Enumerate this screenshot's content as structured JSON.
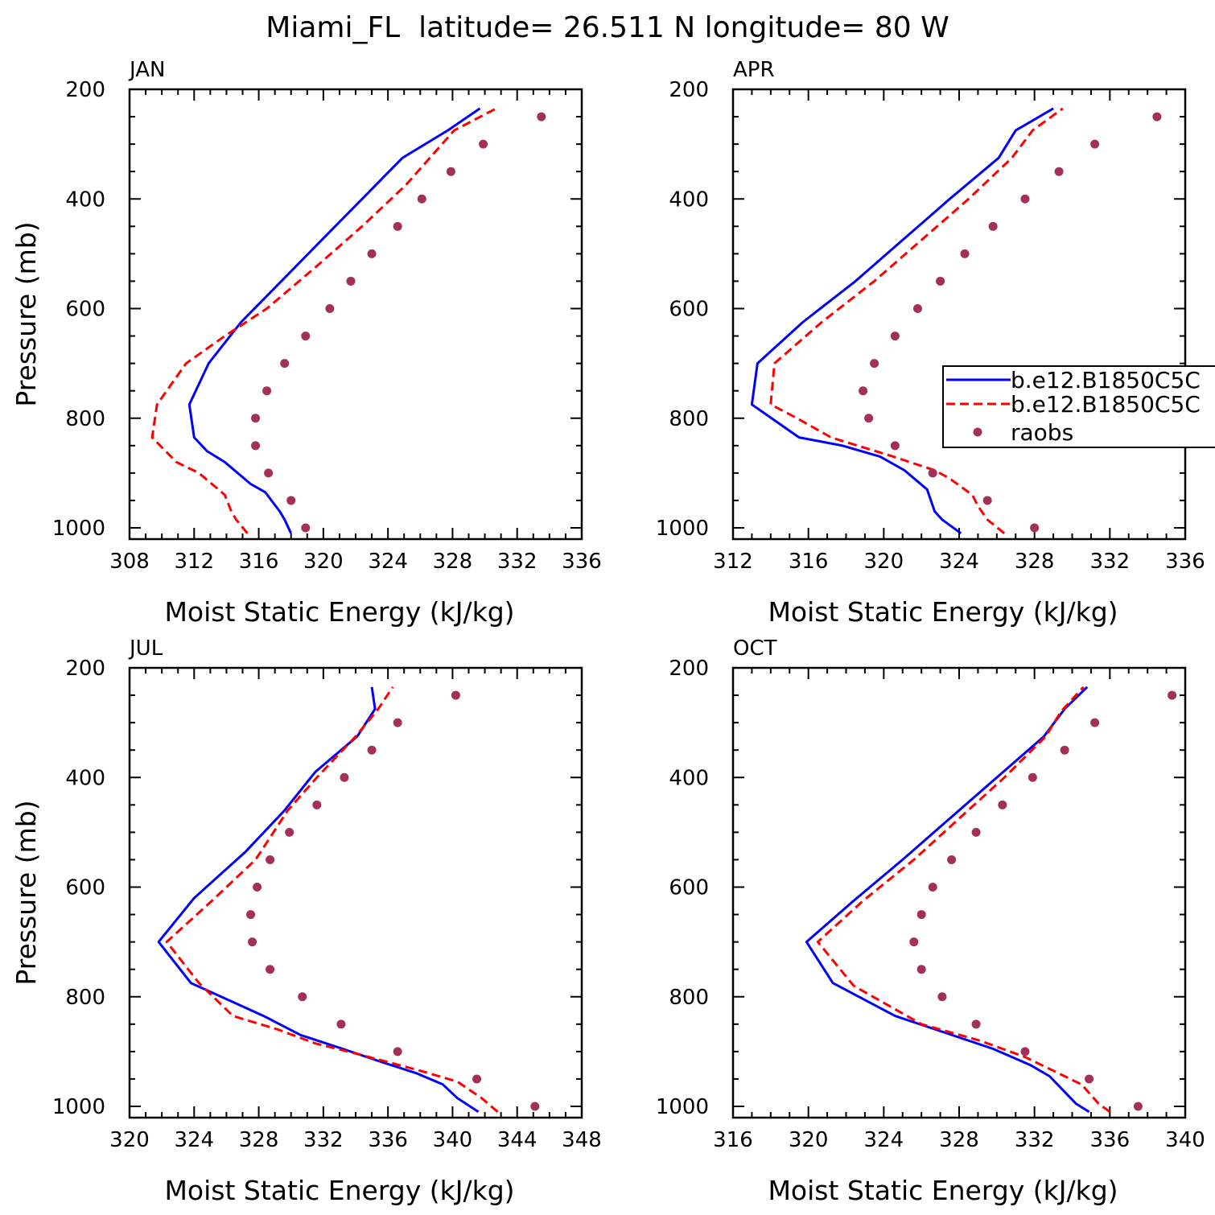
{
  "title": "Miami_FL  latitude= 26.511 N longitude= 80 W",
  "legend": {
    "entries": [
      {
        "label": "b.e12.B1850C5C",
        "style": "solid",
        "color": "#0000ff"
      },
      {
        "label": "b.e12.B1850C5C",
        "style": "dashed",
        "color": "#ff0000"
      },
      {
        "label": "raobs",
        "style": "dot",
        "color": "#a3305a"
      }
    ]
  },
  "chart_data": [
    {
      "type": "line",
      "title": "JAN",
      "xlabel": "Moist Static Energy (kJ/kg)",
      "ylabel": "Pressure (mb)",
      "xlim": [
        308,
        336
      ],
      "ylim": [
        1000,
        200
      ],
      "xticks": [
        "308",
        "312",
        "316",
        "320",
        "324",
        "328",
        "332",
        "336"
      ],
      "yticks": [
        "200",
        "400",
        "600",
        "800",
        "1000"
      ],
      "series": [
        {
          "color": "#0000ff",
          "style": "solid",
          "points": [
            [
              318.0,
              1010
            ],
            [
              317.6,
              985
            ],
            [
              317.3,
              970
            ],
            [
              316.4,
              935
            ],
            [
              315.5,
              920
            ],
            [
              313.9,
              880
            ],
            [
              312.8,
              860
            ],
            [
              312.0,
              835
            ],
            [
              311.7,
              775
            ],
            [
              312.9,
              700
            ],
            [
              314.9,
              625
            ],
            [
              317.4,
              550
            ],
            [
              319.9,
              475
            ],
            [
              322.4,
              400
            ],
            [
              324.9,
              325
            ],
            [
              327.7,
              275
            ],
            [
              329.7,
              235
            ]
          ]
        },
        {
          "color": "#ff0000",
          "style": "dashed",
          "points": [
            [
              315.3,
              1010
            ],
            [
              314.6,
              985
            ],
            [
              314.3,
              970
            ],
            [
              313.9,
              940
            ],
            [
              313.3,
              925
            ],
            [
              312.3,
              900
            ],
            [
              310.9,
              880
            ],
            [
              309.4,
              835
            ],
            [
              309.7,
              775
            ],
            [
              311.5,
              700
            ],
            [
              313.9,
              650
            ],
            [
              316.5,
              600
            ],
            [
              319.5,
              525
            ],
            [
              322.4,
              450
            ],
            [
              325.1,
              375
            ],
            [
              328.1,
              275
            ],
            [
              330.7,
              235
            ]
          ]
        },
        {
          "color": "#a3305a",
          "style": "dot",
          "points": [
            [
              318.9,
              1000
            ],
            [
              318.0,
              950
            ],
            [
              316.6,
              900
            ],
            [
              315.8,
              850
            ],
            [
              315.8,
              800
            ],
            [
              316.5,
              750
            ],
            [
              317.6,
              700
            ],
            [
              318.9,
              650
            ],
            [
              320.4,
              600
            ],
            [
              321.7,
              550
            ],
            [
              323.0,
              500
            ],
            [
              324.6,
              450
            ],
            [
              326.1,
              400
            ],
            [
              327.9,
              350
            ],
            [
              329.9,
              300
            ],
            [
              333.5,
              250
            ]
          ]
        }
      ]
    },
    {
      "type": "line",
      "title": "APR",
      "xlabel": "Moist Static Energy (kJ/kg)",
      "ylabel": "",
      "xlim": [
        312,
        336
      ],
      "ylim": [
        1000,
        200
      ],
      "xticks": [
        "312",
        "316",
        "320",
        "324",
        "328",
        "332",
        "336"
      ],
      "yticks": [
        "200",
        "400",
        "600",
        "800",
        "1000"
      ],
      "series": [
        {
          "color": "#0000ff",
          "style": "solid",
          "points": [
            [
              324.1,
              1010
            ],
            [
              323.1,
              985
            ],
            [
              322.7,
              970
            ],
            [
              322.3,
              930
            ],
            [
              321.1,
              895
            ],
            [
              319.8,
              870
            ],
            [
              317.8,
              850
            ],
            [
              315.5,
              835
            ],
            [
              313.0,
              775
            ],
            [
              313.3,
              700
            ],
            [
              315.7,
              625
            ],
            [
              318.5,
              550
            ],
            [
              321.0,
              475
            ],
            [
              323.5,
              400
            ],
            [
              326.1,
              325
            ],
            [
              327.0,
              275
            ],
            [
              329.0,
              235
            ]
          ]
        },
        {
          "color": "#ff0000",
          "style": "dashed",
          "points": [
            [
              326.4,
              1010
            ],
            [
              325.5,
              985
            ],
            [
              325.0,
              960
            ],
            [
              324.7,
              940
            ],
            [
              323.5,
              910
            ],
            [
              322.7,
              895
            ],
            [
              320.5,
              870
            ],
            [
              318.6,
              850
            ],
            [
              317.2,
              835
            ],
            [
              315.4,
              800
            ],
            [
              314.0,
              775
            ],
            [
              314.2,
              700
            ],
            [
              316.7,
              625
            ],
            [
              319.5,
              550
            ],
            [
              322.0,
              475
            ],
            [
              324.5,
              400
            ],
            [
              326.8,
              325
            ],
            [
              327.9,
              275
            ],
            [
              329.5,
              235
            ]
          ]
        },
        {
          "color": "#a3305a",
          "style": "dot",
          "points": [
            [
              328.0,
              1000
            ],
            [
              325.5,
              950
            ],
            [
              322.6,
              900
            ],
            [
              320.6,
              850
            ],
            [
              319.2,
              800
            ],
            [
              318.9,
              750
            ],
            [
              319.5,
              700
            ],
            [
              320.6,
              650
            ],
            [
              321.8,
              600
            ],
            [
              323.0,
              550
            ],
            [
              324.3,
              500
            ],
            [
              325.8,
              450
            ],
            [
              327.5,
              400
            ],
            [
              329.3,
              350
            ],
            [
              331.2,
              300
            ],
            [
              334.5,
              250
            ]
          ]
        }
      ]
    },
    {
      "type": "line",
      "title": "JUL",
      "xlabel": "Moist Static Energy (kJ/kg)",
      "ylabel": "Pressure (mb)",
      "xlim": [
        320,
        348
      ],
      "ylim": [
        1000,
        200
      ],
      "xticks": [
        "320",
        "324",
        "328",
        "332",
        "336",
        "340",
        "344",
        "348"
      ],
      "yticks": [
        "200",
        "400",
        "600",
        "800",
        "1000"
      ],
      "series": [
        {
          "color": "#0000ff",
          "style": "solid",
          "points": [
            [
              341.6,
              1010
            ],
            [
              340.3,
              985
            ],
            [
              339.4,
              960
            ],
            [
              337.8,
              940
            ],
            [
              335.7,
              920
            ],
            [
              333.2,
              895
            ],
            [
              330.6,
              870
            ],
            [
              328.3,
              835
            ],
            [
              323.8,
              775
            ],
            [
              321.8,
              700
            ],
            [
              324.0,
              620
            ],
            [
              327.2,
              535
            ],
            [
              329.6,
              460
            ],
            [
              331.5,
              390
            ],
            [
              334.1,
              325
            ],
            [
              335.2,
              275
            ],
            [
              335.0,
              235
            ]
          ]
        },
        {
          "color": "#ff0000",
          "style": "dashed",
          "points": [
            [
              342.8,
              1010
            ],
            [
              341.8,
              985
            ],
            [
              340.3,
              955
            ],
            [
              338.0,
              935
            ],
            [
              334.2,
              905
            ],
            [
              331.5,
              885
            ],
            [
              329.2,
              860
            ],
            [
              326.4,
              835
            ],
            [
              324.3,
              775
            ],
            [
              322.3,
              700
            ],
            [
              325.1,
              625
            ],
            [
              327.8,
              550
            ],
            [
              329.8,
              460
            ],
            [
              331.6,
              400
            ],
            [
              334.0,
              325
            ],
            [
              335.4,
              275
            ],
            [
              336.3,
              235
            ]
          ]
        },
        {
          "color": "#a3305a",
          "style": "dot",
          "points": [
            [
              345.1,
              1000
            ],
            [
              341.5,
              950
            ],
            [
              336.6,
              900
            ],
            [
              333.1,
              850
            ],
            [
              330.7,
              800
            ],
            [
              328.7,
              750
            ],
            [
              327.6,
              700
            ],
            [
              327.5,
              650
            ],
            [
              327.9,
              600
            ],
            [
              328.7,
              550
            ],
            [
              329.9,
              500
            ],
            [
              331.6,
              450
            ],
            [
              333.3,
              400
            ],
            [
              335.0,
              350
            ],
            [
              336.6,
              300
            ],
            [
              340.2,
              250
            ]
          ]
        }
      ]
    },
    {
      "type": "line",
      "title": "OCT",
      "xlabel": "Moist Static Energy (kJ/kg)",
      "ylabel": "",
      "xlim": [
        316,
        340
      ],
      "ylim": [
        1000,
        200
      ],
      "xticks": [
        "316",
        "320",
        "324",
        "328",
        "332",
        "336",
        "340"
      ],
      "yticks": [
        "200",
        "400",
        "600",
        "800",
        "1000"
      ],
      "series": [
        {
          "color": "#0000ff",
          "style": "solid",
          "points": [
            [
              334.9,
              1010
            ],
            [
              334.2,
              995
            ],
            [
              333.5,
              970
            ],
            [
              332.8,
              945
            ],
            [
              331.8,
              925
            ],
            [
              329.8,
              895
            ],
            [
              327.2,
              865
            ],
            [
              324.6,
              835
            ],
            [
              321.3,
              775
            ],
            [
              319.9,
              700
            ],
            [
              322.4,
              625
            ],
            [
              325.0,
              550
            ],
            [
              327.5,
              475
            ],
            [
              330.0,
              400
            ],
            [
              332.5,
              325
            ],
            [
              333.6,
              275
            ],
            [
              334.8,
              235
            ]
          ]
        },
        {
          "color": "#ff0000",
          "style": "dashed",
          "points": [
            [
              336.0,
              1010
            ],
            [
              335.4,
              995
            ],
            [
              334.5,
              960
            ],
            [
              333.0,
              935
            ],
            [
              331.5,
              910
            ],
            [
              329.1,
              880
            ],
            [
              326.0,
              850
            ],
            [
              322.4,
              780
            ],
            [
              320.5,
              700
            ],
            [
              322.9,
              625
            ],
            [
              325.6,
              550
            ],
            [
              328.0,
              475
            ],
            [
              330.4,
              400
            ],
            [
              332.6,
              325
            ],
            [
              333.4,
              280
            ],
            [
              334.6,
              235
            ]
          ]
        },
        {
          "color": "#a3305a",
          "style": "dot",
          "points": [
            [
              337.5,
              1000
            ],
            [
              334.9,
              950
            ],
            [
              331.5,
              900
            ],
            [
              328.9,
              850
            ],
            [
              327.1,
              800
            ],
            [
              326.0,
              750
            ],
            [
              325.6,
              700
            ],
            [
              326.0,
              650
            ],
            [
              326.6,
              600
            ],
            [
              327.6,
              550
            ],
            [
              328.9,
              500
            ],
            [
              330.3,
              450
            ],
            [
              331.9,
              400
            ],
            [
              333.6,
              350
            ],
            [
              335.2,
              300
            ],
            [
              339.3,
              250
            ]
          ]
        }
      ]
    }
  ]
}
